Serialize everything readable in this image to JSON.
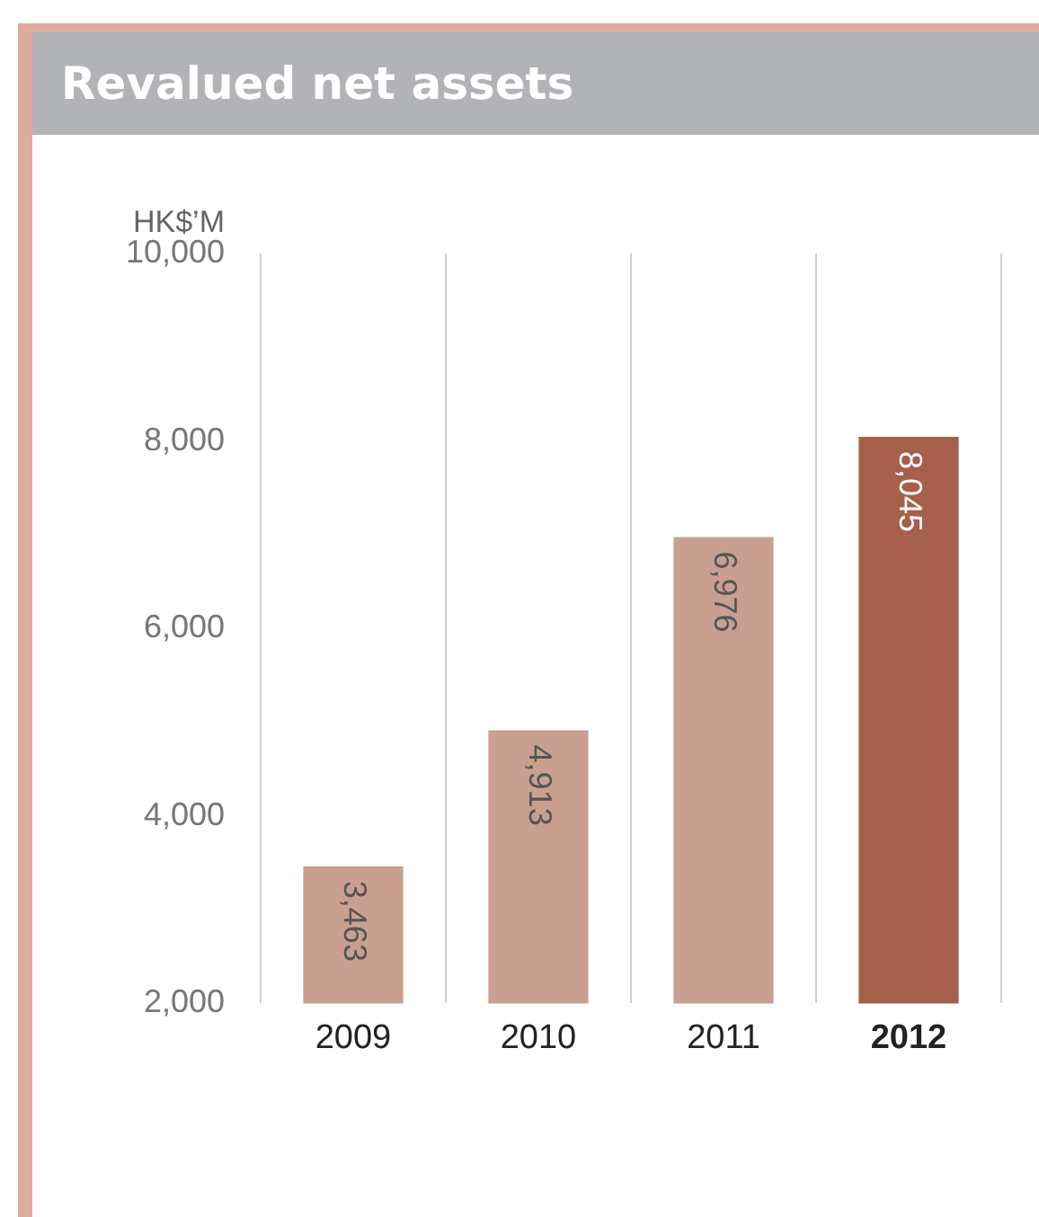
{
  "chart_data": {
    "type": "bar",
    "title": "Revalued net assets",
    "ylabel": "HK$’M",
    "categories": [
      "2009",
      "2010",
      "2011",
      "2012"
    ],
    "values": [
      3463,
      4913,
      6976,
      8045
    ],
    "value_labels": [
      "3,463",
      "4,913",
      "6,976",
      "8,045"
    ],
    "colors": [
      "#c9a08f",
      "#c9a08f",
      "#c9a08f",
      "#a65f4a"
    ],
    "ylim": [
      2000,
      10000
    ],
    "yticks": [
      {
        "value": 2000,
        "label": "2,000"
      },
      {
        "value": 4000,
        "label": "4,000"
      },
      {
        "value": 6000,
        "label": "6,000"
      },
      {
        "value": 8000,
        "label": "8,000"
      },
      {
        "value": 10000,
        "label": "10,000"
      }
    ],
    "grid": "x"
  }
}
